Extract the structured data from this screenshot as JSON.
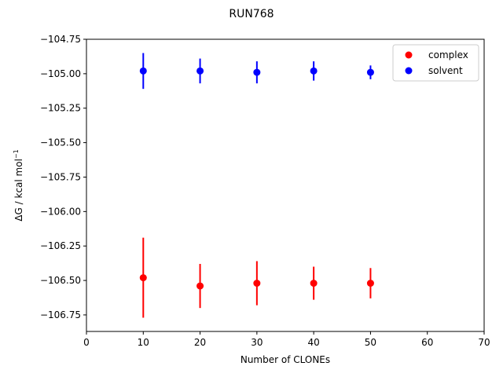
{
  "chart_data": {
    "type": "scatter",
    "title": "RUN768",
    "xlabel": "Number of CLONEs",
    "ylabel": "ΔG / kcal mol",
    "ylabel_sup": "−1",
    "xlim": [
      0,
      70
    ],
    "ylim": [
      -106.87,
      -104.75
    ],
    "xticks": [
      0,
      10,
      20,
      30,
      40,
      50,
      60,
      70
    ],
    "yticks": [
      -104.75,
      -105.0,
      -105.25,
      -105.5,
      -105.75,
      -106.0,
      -106.25,
      -106.5,
      -106.75
    ],
    "ytick_labels": [
      "−104.75",
      "−105.00",
      "−105.25",
      "−105.50",
      "−105.75",
      "−106.00",
      "−106.25",
      "−106.50",
      "−106.75"
    ],
    "grid": false,
    "legend_position": "top-right",
    "series": [
      {
        "name": "complex",
        "color": "#ff0000",
        "x": [
          10,
          20,
          30,
          40,
          50
        ],
        "y": [
          -106.48,
          -106.54,
          -106.52,
          -106.52,
          -106.52
        ],
        "yerr": [
          0.29,
          0.16,
          0.16,
          0.12,
          0.11
        ]
      },
      {
        "name": "solvent",
        "color": "#0000ff",
        "x": [
          10,
          20,
          30,
          40,
          50
        ],
        "y": [
          -104.98,
          -104.98,
          -104.99,
          -104.98,
          -104.99
        ],
        "yerr": [
          0.13,
          0.09,
          0.08,
          0.07,
          0.05
        ]
      }
    ]
  }
}
